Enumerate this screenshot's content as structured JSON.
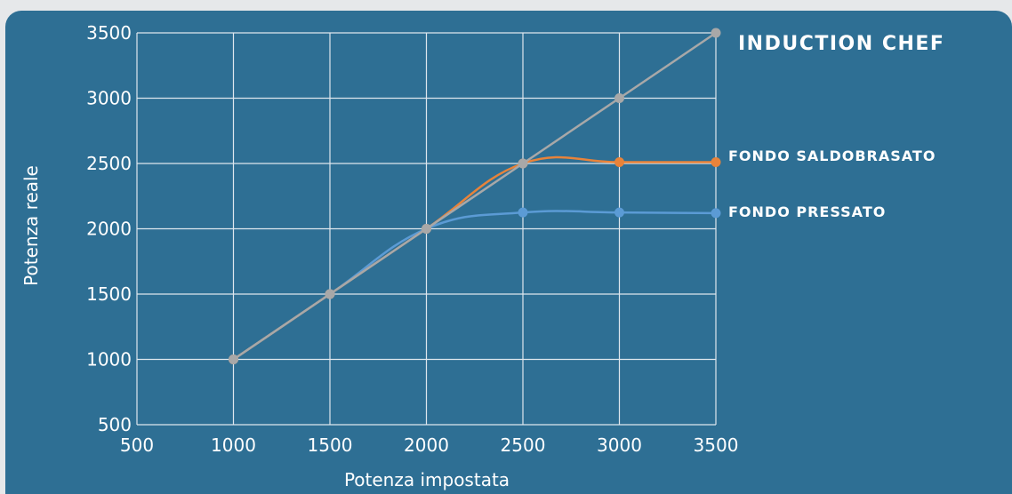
{
  "chart_data": {
    "type": "line",
    "title": "INDUCTION CHEF",
    "xlabel": "Potenza impostata",
    "ylabel": "Potenza reale",
    "xlim": [
      500,
      3500
    ],
    "ylim": [
      500,
      3500
    ],
    "xticks": [
      "500",
      "1000",
      "1500",
      "2000",
      "2500",
      "3000",
      "3500"
    ],
    "yticks": [
      "500",
      "1000",
      "1500",
      "2000",
      "2500",
      "3000",
      "3500"
    ],
    "grid": true,
    "series": [
      {
        "name": "INDUCTION CHEF",
        "color": "#a8a8a8",
        "x": [
          1000,
          1500,
          2000,
          2500,
          3000,
          3500
        ],
        "y": [
          1000,
          1500,
          2000,
          2500,
          3000,
          3500
        ]
      },
      {
        "name": "FONDO SALDOBRASATO",
        "color": "#e8833a",
        "x": [
          1000,
          1500,
          2000,
          2500,
          3000,
          3500
        ],
        "y": [
          1000,
          1500,
          2000,
          2500,
          2510,
          2510
        ]
      },
      {
        "name": "FONDO PRESSATO",
        "color": "#5b9bd5",
        "x": [
          1000,
          1500,
          2000,
          2500,
          3000,
          3500
        ],
        "y": [
          1000,
          1500,
          2000,
          2125,
          2125,
          2120
        ]
      }
    ]
  }
}
